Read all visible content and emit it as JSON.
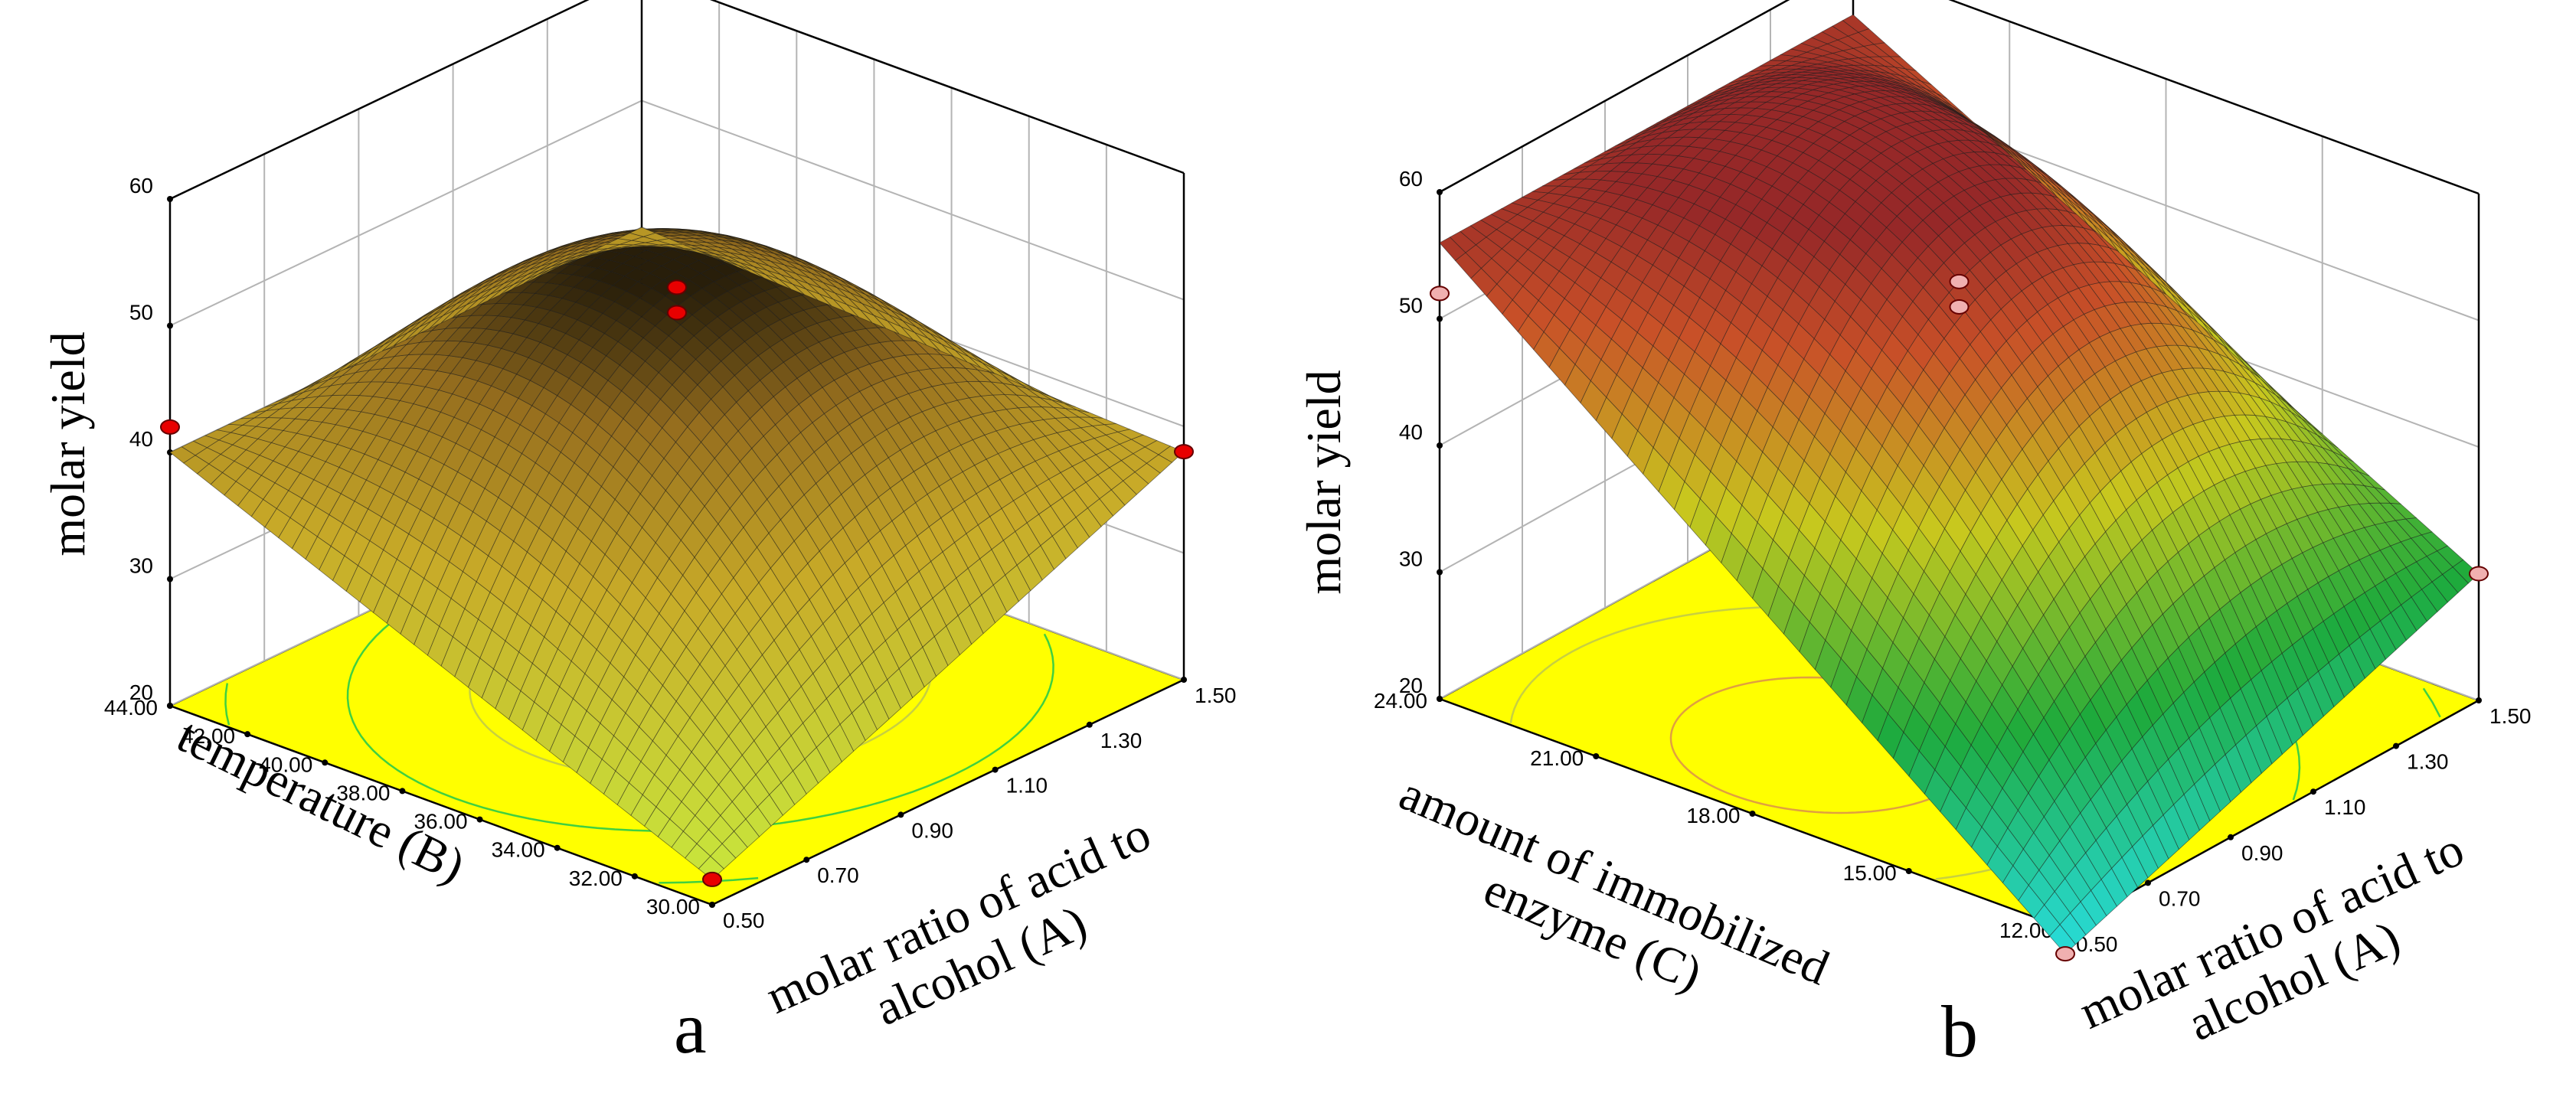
{
  "chart_data": [
    {
      "type": "surface",
      "panel_label": "a",
      "zlabel": "molar yield",
      "xlabel": "molar ratio of acid to alcohol (A)",
      "xlabel_lines": [
        "molar ratio of acid to",
        "alcohol (A)"
      ],
      "ylabel": "temperature (B)",
      "ylabel_lines": [
        "temperature (B)"
      ],
      "x_ticks": [
        "0.50",
        "0.70",
        "0.90",
        "1.10",
        "1.30",
        "1.50"
      ],
      "y_ticks": [
        "30.00",
        "32.00",
        "34.00",
        "36.00",
        "38.00",
        "40.00",
        "42.00",
        "44.00"
      ],
      "z_ticks": [
        "20",
        "30",
        "40",
        "50",
        "60"
      ],
      "xlim": [
        0.5,
        1.5
      ],
      "ylim": [
        30,
        44
      ],
      "zlim": [
        20,
        60
      ],
      "surface_corners": {
        "x0y0": 22,
        "x1y0": 38,
        "x0y1": 40,
        "x1y1": 40
      },
      "surface_peak": 52,
      "surface_color_map": "yellow-red-dark",
      "design_points": [
        {
          "x": 0.5,
          "y": 44,
          "z": 42
        },
        {
          "x": 1.0,
          "y": 37,
          "z": 50
        },
        {
          "x": 1.0,
          "y": 37,
          "z": 52
        },
        {
          "x": 0.5,
          "y": 30,
          "z": 22
        },
        {
          "x": 1.5,
          "y": 30,
          "z": 38
        }
      ],
      "point_color": "#e80000"
    },
    {
      "type": "surface",
      "panel_label": "b",
      "zlabel": "molar yield",
      "xlabel": "molar ratio of acid to alcohol (A)",
      "xlabel_lines": [
        "molar ratio of acid to",
        "alcohol (A)"
      ],
      "ylabel": "amount of immobilized enzyme (C)",
      "ylabel_lines": [
        "amount of immobilized",
        "enzyme (C)"
      ],
      "x_ticks": [
        "0.50",
        "0.70",
        "0.90",
        "1.10",
        "1.30",
        "1.50"
      ],
      "y_ticks": [
        "12.00",
        "15.00",
        "18.00",
        "21.00",
        "24.00"
      ],
      "z_ticks": [
        "20",
        "30",
        "40",
        "50",
        "60"
      ],
      "xlim": [
        0.5,
        1.5
      ],
      "ylim": [
        12,
        24
      ],
      "zlim": [
        20,
        60
      ],
      "surface_corners": {
        "x0y0": 18,
        "x1y0": 30,
        "x0y1": 56,
        "x1y1": 56
      },
      "surface_peak": 58,
      "surface_color_map": "cyan-green-yellow-red",
      "design_points": [
        {
          "x": 0.5,
          "y": 24,
          "z": 52
        },
        {
          "x": 1.0,
          "y": 18,
          "z": 51
        },
        {
          "x": 1.0,
          "y": 18,
          "z": 53
        },
        {
          "x": 0.5,
          "y": 12,
          "z": 18
        },
        {
          "x": 1.5,
          "y": 12,
          "z": 30
        }
      ],
      "point_color": "#f0b0b0"
    }
  ]
}
